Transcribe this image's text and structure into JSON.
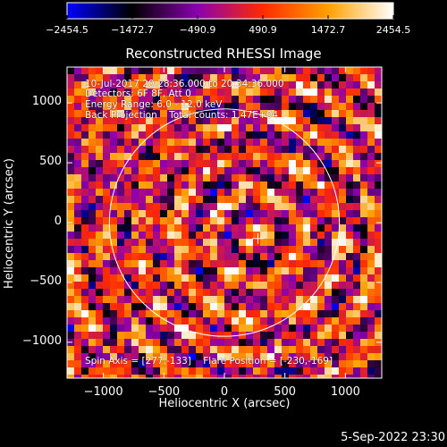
{
  "chart_data": {
    "type": "heatmap",
    "title": "Reconstructed RHESSI Image",
    "xlabel": "Heliocentric X (arcsec)",
    "ylabel": "Heliocentric Y (arcsec)",
    "xlim": [
      -1300,
      1300
    ],
    "ylim": [
      -1300,
      1300
    ],
    "x_ticks": [
      -1000,
      -500,
      0,
      500,
      1000
    ],
    "y_ticks": [
      -1000,
      -500,
      0,
      500,
      1000
    ],
    "colorbar": {
      "min": -2454.5,
      "max": 2454.5,
      "tick_labels": [
        "−2454.5",
        "−1472.7",
        "−490.9",
        "490.9",
        "1472.7",
        "2454.5"
      ],
      "colormap": [
        "#0000ff",
        "#000000",
        "#8b00b0",
        "#ff2a00",
        "#ffa000",
        "#ffffff"
      ]
    },
    "annotations": [
      "10-Jul-2017 20:28:36.000 to 20:34:36.000",
      "Detectors: 6F 8F, Att 0",
      "Energy Range: 6.0 - 12.0 keV",
      "Back Projection    Total counts: 1.47E+04",
      "Spin Axis = [277,-133]    Flare Position = [-230,-169]"
    ],
    "solar_limb_radius_arcsec": 950,
    "spin_axis_marker": [
      277,
      -133
    ]
  },
  "footer": {
    "date": "5-Sep-2022 23:30"
  }
}
